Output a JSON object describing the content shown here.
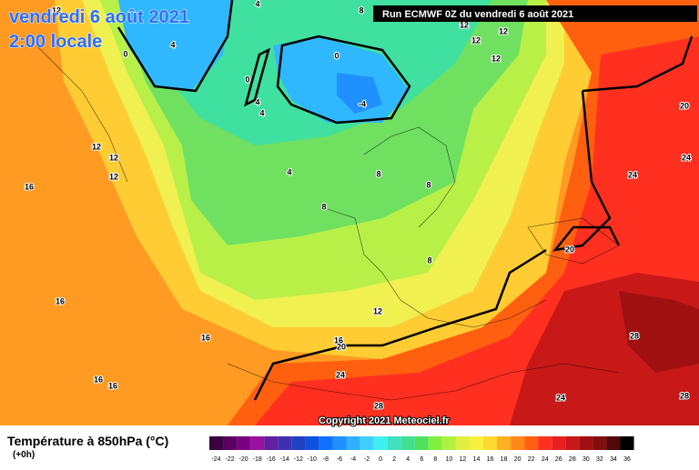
{
  "header": {
    "date": "vendredi 6 août 2021",
    "time": "2:00 locale",
    "run": "Run ECMWF 0Z du vendredi 6 août 2021"
  },
  "copyright": "Copyright 2021 Meteociel.fr",
  "legend": {
    "title": "Température à 850hPa (°C)",
    "subtitle": "(+0h)",
    "ticks": [
      -24,
      -22,
      -20,
      -18,
      -16,
      -14,
      -12,
      -10,
      -8,
      -6,
      -4,
      -2,
      0,
      2,
      4,
      6,
      8,
      10,
      12,
      14,
      16,
      18,
      20,
      22,
      24,
      26,
      28,
      30,
      32,
      34,
      36
    ],
    "colors": [
      "#3a0040",
      "#5a005f",
      "#7a007f",
      "#9a10a0",
      "#6020a0",
      "#4030b0",
      "#2040c0",
      "#1050e0",
      "#1070ff",
      "#2090ff",
      "#30b0ff",
      "#40d0ff",
      "#40f0f0",
      "#40e0c0",
      "#40e090",
      "#50e060",
      "#80f040",
      "#b0f040",
      "#e0f040",
      "#f8f040",
      "#ffd830",
      "#ffb020",
      "#ff8818",
      "#ff6010",
      "#ff3020",
      "#e82020",
      "#c81818",
      "#a01010",
      "#801010",
      "#500808",
      "#000000"
    ]
  },
  "map_labels": [
    12,
    4,
    8,
    12,
    12,
    12,
    12,
    0,
    4,
    0,
    0,
    4,
    4,
    -4,
    12,
    12,
    12,
    16,
    4,
    8,
    8,
    8,
    8,
    12,
    16,
    16,
    16,
    20,
    24,
    16,
    16,
    20,
    24,
    24,
    20,
    28,
    28,
    24,
    28
  ]
}
